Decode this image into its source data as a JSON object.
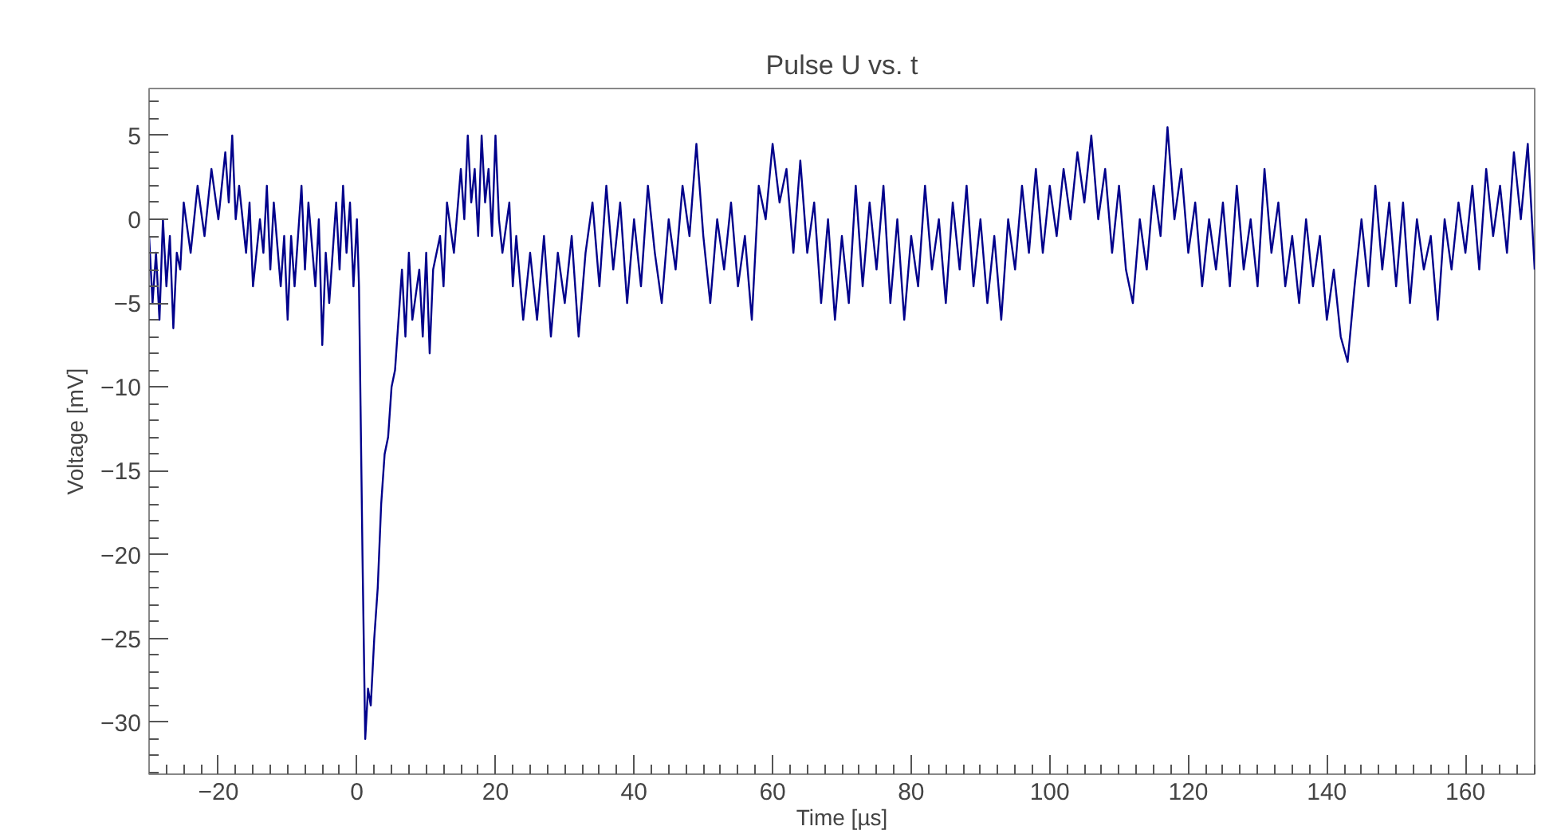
{
  "chart_data": {
    "type": "line",
    "title": "Pulse U vs. t",
    "xlabel": "Time [µs]",
    "ylabel": "Voltage [mV]",
    "xlim": [
      -30,
      170
    ],
    "ylim": [
      -33.1,
      7.8
    ],
    "xticks": [
      {
        "value": -20,
        "label": "−20"
      },
      0,
      20,
      40,
      60,
      80,
      100,
      120,
      140,
      160
    ],
    "yticks": [
      {
        "value": -30,
        "label": "−30"
      },
      {
        "value": -25,
        "label": "−25"
      },
      {
        "value": -20,
        "label": "−20"
      },
      {
        "value": -15,
        "label": "−15"
      },
      {
        "value": -10,
        "label": "−10"
      },
      {
        "value": -5,
        "label": "−5"
      },
      0,
      5
    ],
    "grid": false,
    "marker": "none",
    "line_style": "solid",
    "series": [
      {
        "color": "#00008b",
        "x": [
          -30,
          -29.5,
          -29,
          -28.5,
          -28,
          -27.5,
          -27,
          -26.5,
          -26,
          -25.5,
          -25,
          -24,
          -23,
          -22,
          -21,
          -20,
          -19,
          -18.5,
          -18,
          -17.5,
          -17,
          -16,
          -15.5,
          -15,
          -14,
          -13.5,
          -13,
          -12.5,
          -12,
          -11,
          -10.5,
          -10,
          -9.5,
          -9,
          -8,
          -7.5,
          -7,
          -6,
          -5.5,
          -5,
          -4.5,
          -4,
          -3,
          -2.5,
          -2,
          -1.5,
          -1,
          -0.5,
          0,
          0.3,
          0.8,
          1.2,
          1.6,
          2,
          2.5,
          3,
          3.5,
          4,
          4.5,
          5,
          5.5,
          6,
          6.5,
          7,
          7.5,
          8,
          9,
          9.5,
          10,
          10.5,
          11,
          12,
          12.5,
          13,
          14,
          15,
          15.5,
          16,
          16.5,
          17,
          17.5,
          18,
          18.5,
          19,
          19.5,
          20,
          20.5,
          21,
          22,
          22.5,
          23,
          24,
          25,
          26,
          27,
          28,
          29,
          30,
          31,
          32,
          33,
          34,
          35,
          36,
          37,
          38,
          39,
          40,
          41,
          42,
          43,
          44,
          45,
          46,
          47,
          48,
          49,
          50,
          51,
          52,
          53,
          54,
          55,
          56,
          57,
          58,
          59,
          60,
          61,
          62,
          63,
          64,
          65,
          66,
          67,
          68,
          69,
          70,
          71,
          72,
          73,
          74,
          75,
          76,
          77,
          78,
          79,
          80,
          81,
          82,
          83,
          84,
          85,
          86,
          87,
          88,
          89,
          90,
          91,
          92,
          93,
          94,
          95,
          96,
          97,
          98,
          99,
          100,
          101,
          102,
          103,
          104,
          105,
          106,
          107,
          108,
          109,
          110,
          111,
          112,
          113,
          114,
          115,
          116,
          117,
          118,
          119,
          120,
          121,
          122,
          123,
          124,
          125,
          126,
          127,
          128,
          129,
          130,
          131,
          132,
          133,
          134,
          135,
          136,
          137,
          138,
          139,
          140,
          141,
          142,
          143,
          144,
          145,
          146,
          147,
          148,
          149,
          150,
          151,
          152,
          153,
          154,
          155,
          156,
          157,
          158,
          159,
          160,
          161,
          162,
          163,
          164,
          165,
          166,
          167,
          168,
          169,
          170
        ],
        "values": [
          -1,
          -5,
          -2,
          -6,
          0,
          -4,
          -1,
          -6.5,
          -2,
          -3,
          1,
          -2,
          2,
          -1,
          3,
          0,
          4,
          1,
          5,
          0,
          2,
          -2,
          1,
          -4,
          0,
          -2,
          2,
          -3,
          1,
          -4,
          -1,
          -6,
          -1,
          -4,
          2,
          -3,
          1,
          -4,
          0,
          -7.5,
          -2,
          -5,
          1,
          -3,
          2,
          -2,
          1,
          -4,
          0,
          -4,
          -20,
          -31,
          -28,
          -29,
          -25,
          -22,
          -17,
          -14,
          -13,
          -10,
          -9,
          -6,
          -3,
          -7,
          -2,
          -6,
          -3,
          -7,
          -2,
          -8,
          -3,
          -1,
          -4,
          1,
          -2,
          3,
          0,
          5,
          1,
          3,
          -1,
          5,
          1,
          3,
          -1,
          5,
          0,
          -2,
          1,
          -4,
          -1,
          -6,
          -2,
          -6,
          -1,
          -7,
          -2,
          -5,
          -1,
          -7,
          -2,
          1,
          -4,
          2,
          -3,
          1,
          -5,
          0,
          -4,
          2,
          -2,
          -5,
          0,
          -3,
          2,
          -1,
          4.5,
          -1,
          -5,
          0,
          -3,
          1,
          -4,
          -1,
          -6,
          2,
          0,
          4.5,
          1,
          3,
          -2,
          3.5,
          -2,
          1,
          -5,
          0,
          -6,
          -1,
          -5,
          2,
          -4,
          1,
          -3,
          2,
          -5,
          0,
          -6,
          -1,
          -4,
          2,
          -3,
          0,
          -5,
          1,
          -3,
          2,
          -4,
          0,
          -5,
          -1,
          -6,
          0,
          -3,
          2,
          -2,
          3,
          -2,
          2,
          -1,
          3,
          0,
          4,
          1,
          5,
          0,
          3,
          -2,
          2,
          -3,
          -5,
          0,
          -3,
          2,
          -1,
          5.5,
          0,
          3,
          -2,
          1,
          -4,
          0,
          -3,
          1,
          -4,
          2,
          -3,
          0,
          -4,
          3,
          -2,
          1,
          -4,
          -1,
          -5,
          0,
          -4,
          -1,
          -6,
          -3,
          -7,
          -8.5,
          -4,
          0,
          -4,
          2,
          -3,
          1,
          -4,
          1,
          -5,
          0,
          -3,
          -1,
          -6,
          0,
          -3,
          1,
          -2,
          2,
          -3,
          3,
          -1,
          2,
          -2,
          4,
          0,
          4.5,
          -3
        ]
      }
    ]
  }
}
